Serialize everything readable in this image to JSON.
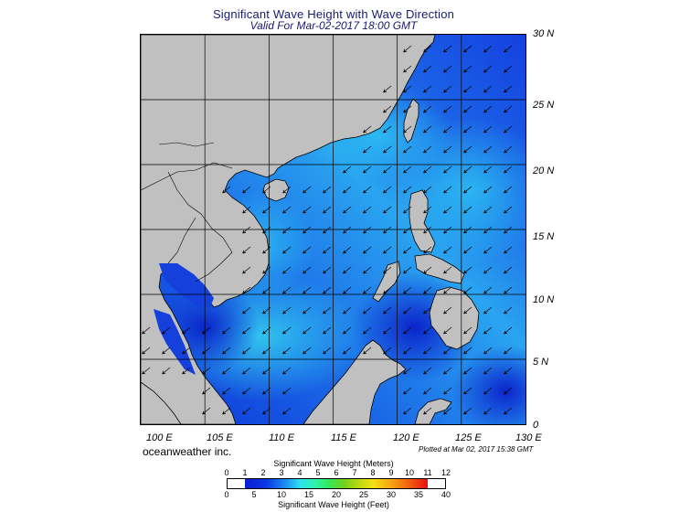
{
  "title": "Significant Wave Height with Wave Direction",
  "subtitle": "Valid For Mar-02-2017 18:00 GMT",
  "lat_labels": [
    "30 N",
    "25 N",
    "20 N",
    "15 N",
    "10 N",
    "5 N",
    "0"
  ],
  "lon_labels": [
    "100 E",
    "105 E",
    "110 E",
    "115 E",
    "120 E",
    "125 E",
    "130 E"
  ],
  "attribution": "oceanweather inc.",
  "plotted": "Plotted at Mar 02, 2017 15:38 GMT",
  "legend": {
    "meters_title": "Significant Wave Height (Meters)",
    "meters_ticks": [
      "0",
      "1",
      "2",
      "3",
      "4",
      "5",
      "6",
      "7",
      "8",
      "9",
      "10",
      "11",
      "12"
    ],
    "feet_title": "Significant Wave Height (Feet)",
    "feet_ticks": [
      "0",
      "5",
      "10",
      "15",
      "20",
      "25",
      "30",
      "35",
      "40"
    ]
  },
  "colors": {
    "land": "#c0c0c0",
    "ocean_low": "#0a2ad8",
    "ocean_mid": "#1f7cf0",
    "ocean_high": "#2fd2f2",
    "title": "#1a1a6e"
  },
  "map_extent": {
    "lon": [
      100,
      130
    ],
    "lat": [
      0,
      30
    ]
  }
}
